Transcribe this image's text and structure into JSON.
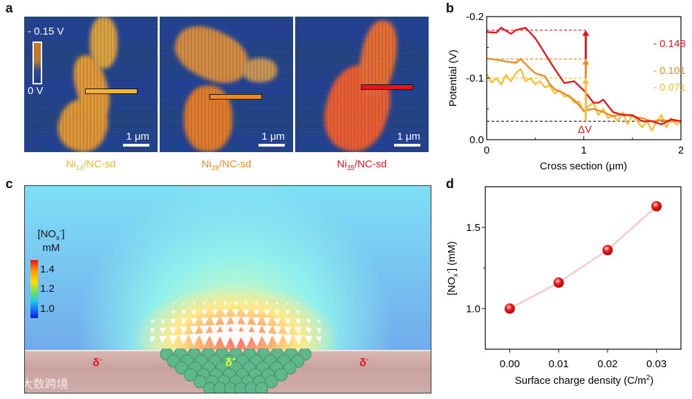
{
  "panel_labels": {
    "a": "a",
    "b": "b",
    "c": "c",
    "d": "d"
  },
  "panel_a": {
    "colorbar": {
      "top": "- 0.15 V",
      "bottom": "0 V"
    },
    "scale_bar": "1 μm",
    "images": [
      {
        "pre": "Ni",
        "sub": "14",
        "post": "/NC-sd",
        "color": "#f2b533"
      },
      {
        "pre": "Ni",
        "sub": "28",
        "post": "/NC-sd",
        "color": "#ee8a1c"
      },
      {
        "pre": "Ni",
        "sub": "35",
        "post": "/NC-sd",
        "color": "#e8141b"
      }
    ]
  },
  "panel_c": {
    "legend_title": "[NO",
    "legend_sub": "x",
    "legend_sup": "-",
    "legend_close": "]",
    "legend_unit": "mM",
    "ticks": [
      "1.4",
      "1.2",
      "1.0"
    ],
    "delta_minus": "δ",
    "minus": "-",
    "delta_plus": "δ",
    "plus": "+",
    "watermark": "大数跨境"
  },
  "chart_data": [
    {
      "type": "line",
      "panel": "b",
      "xlabel": "Cross section (μm)",
      "ylabel": "Potential (V)",
      "xlim": [
        0,
        2
      ],
      "ylim": [
        0,
        -0.2
      ],
      "xticks": [
        "0",
        "1",
        "2"
      ],
      "yticks": [
        "0.0",
        "-0.1",
        "-0.2"
      ],
      "series": [
        {
          "name": "Ni35/NC-sd",
          "color": "#e8141b",
          "x": [
            0,
            0.1,
            0.15,
            0.25,
            0.3,
            0.4,
            0.5,
            0.6,
            0.7,
            0.8,
            0.9,
            1.0,
            1.1,
            1.15,
            1.2,
            1.3,
            1.4,
            1.5,
            1.6,
            1.7,
            1.8,
            1.9,
            2.0
          ],
          "y": [
            -0.175,
            -0.174,
            -0.182,
            -0.172,
            -0.178,
            -0.182,
            -0.165,
            -0.14,
            -0.115,
            -0.092,
            -0.095,
            -0.08,
            -0.06,
            -0.06,
            -0.065,
            -0.045,
            -0.04,
            -0.04,
            -0.03,
            -0.03,
            -0.025,
            -0.033,
            -0.03
          ]
        },
        {
          "name": "Ni28/NC-sd",
          "color": "#ee8a1c",
          "x": [
            0,
            0.1,
            0.2,
            0.3,
            0.35,
            0.45,
            0.5,
            0.6,
            0.65,
            0.7,
            0.8,
            0.9,
            1.0,
            1.1,
            1.2,
            1.3,
            1.4,
            1.5,
            1.6,
            1.7,
            1.8,
            1.9,
            2.0
          ],
          "y": [
            -0.132,
            -0.13,
            -0.127,
            -0.125,
            -0.131,
            -0.115,
            -0.108,
            -0.103,
            -0.09,
            -0.082,
            -0.075,
            -0.065,
            -0.047,
            -0.05,
            -0.045,
            -0.038,
            -0.042,
            -0.038,
            -0.035,
            -0.03,
            -0.032,
            -0.03,
            -0.03
          ]
        },
        {
          "name": "Ni14/NC-sd",
          "color": "#f7be34",
          "x": [
            0,
            0.05,
            0.1,
            0.15,
            0.2,
            0.25,
            0.3,
            0.35,
            0.4,
            0.45,
            0.5,
            0.55,
            0.6,
            0.65,
            0.7,
            0.75,
            0.8,
            0.85,
            0.9,
            0.95,
            1.0,
            1.05,
            1.1,
            1.15,
            1.2,
            1.25,
            1.3,
            1.35,
            1.4,
            1.45,
            1.5,
            1.55,
            1.6,
            1.65,
            1.7,
            1.75,
            1.8,
            1.85,
            1.9,
            1.95,
            2.0
          ],
          "y": [
            -0.107,
            -0.093,
            -0.1,
            -0.09,
            -0.105,
            -0.095,
            -0.108,
            -0.115,
            -0.095,
            -0.1,
            -0.09,
            -0.095,
            -0.085,
            -0.088,
            -0.075,
            -0.08,
            -0.07,
            -0.072,
            -0.06,
            -0.062,
            -0.045,
            -0.055,
            -0.06,
            -0.04,
            -0.05,
            -0.035,
            -0.04,
            -0.03,
            -0.045,
            -0.025,
            -0.04,
            -0.03,
            -0.02,
            -0.03,
            -0.015,
            -0.03,
            -0.04,
            -0.02,
            -0.035,
            -0.025,
            -0.028
          ]
        }
      ],
      "reference_lines": [
        {
          "y": -0.178,
          "color": "#e8141b"
        },
        {
          "y": -0.131,
          "color": "#ee8a1c"
        },
        {
          "y": -0.1,
          "color": "#f7be34"
        },
        {
          "y": -0.03,
          "color": "#111111"
        }
      ],
      "annotations": [
        {
          "text": "- 0.148",
          "color": "#e8141b"
        },
        {
          "text": "- 0.101",
          "color": "#ee8a1c"
        },
        {
          "text": "- 0.071",
          "color": "#f7be34"
        },
        {
          "text": "ΔV",
          "color": "#e8141b"
        }
      ]
    },
    {
      "type": "line",
      "panel": "d",
      "xlabel": "Surface charge density (C/m",
      "xlabel_sup": "2",
      "xlabel_close": ")",
      "ylabel": "[NO",
      "ylabel_sub": "x",
      "ylabel_sup": "-",
      "ylabel_close": "] (mM)",
      "xlim": [
        -0.005,
        0.035
      ],
      "ylim": [
        0.75,
        1.75
      ],
      "xticks": [
        "0.00",
        "0.01",
        "0.02",
        "0.03"
      ],
      "yticks": [
        "1.0",
        "1.5"
      ],
      "x": [
        0,
        0.01,
        0.02,
        0.03
      ],
      "y": [
        1.0,
        1.16,
        1.36,
        1.63
      ],
      "color": "#e8141b"
    }
  ]
}
